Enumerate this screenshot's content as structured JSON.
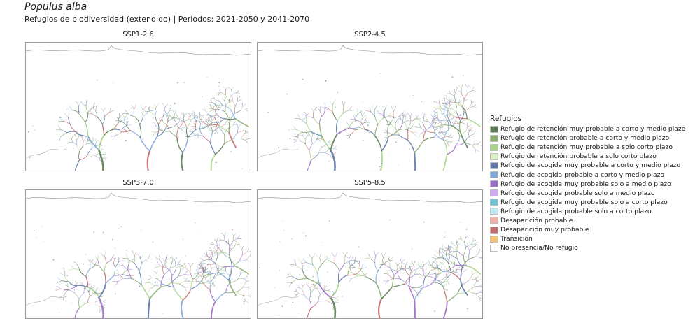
{
  "title": "Populus alba",
  "subtitle": "Refugios de biodiversidad (extendido) | Periodos: 2021-2050 y 2041-2070",
  "panels": [
    {
      "label": "SSP1-2.6"
    },
    {
      "label": "SSP2-4.5"
    },
    {
      "label": "SSP3-7.0"
    },
    {
      "label": "SSP5-8.5"
    }
  ],
  "legend": {
    "title": "Refugios",
    "items": [
      {
        "label": "Refugio de retención muy probable a corto y medio plazo",
        "color": "#5b7a4f"
      },
      {
        "label": "Refugio de retención probable a corto y medio plazo",
        "color": "#8aab6e"
      },
      {
        "label": "Refugio de retención muy probable a solo corto plazo",
        "color": "#a9d48a"
      },
      {
        "label": "Refugio de retención probable a solo corto plazo",
        "color": "#d8efc4"
      },
      {
        "label": "Refugio de acogida muy probable a corto y medio plazo",
        "color": "#5f78a8"
      },
      {
        "label": "Refugio de acogida probable a corto y medio plazo",
        "color": "#7fa7d8"
      },
      {
        "label": "Refugio de acogida muy probable solo a medio plazo",
        "color": "#9b6cc9"
      },
      {
        "label": "Refugio de acogida probable solo a medio plazo",
        "color": "#d2a9ee"
      },
      {
        "label": "Refugio de acogida muy probable solo a corto plazo",
        "color": "#6cc3d1"
      },
      {
        "label": "Refugio de acogida probable solo a corto plazo",
        "color": "#bde9f2"
      },
      {
        "label": "Desaparición probable",
        "color": "#f2b3a4"
      },
      {
        "label": "Desaparición muy probable",
        "color": "#c46a6a"
      },
      {
        "label": "Transición",
        "color": "#f2c46f"
      },
      {
        "label": "No presencia/No refugio",
        "color": "#ffffff"
      }
    ]
  }
}
